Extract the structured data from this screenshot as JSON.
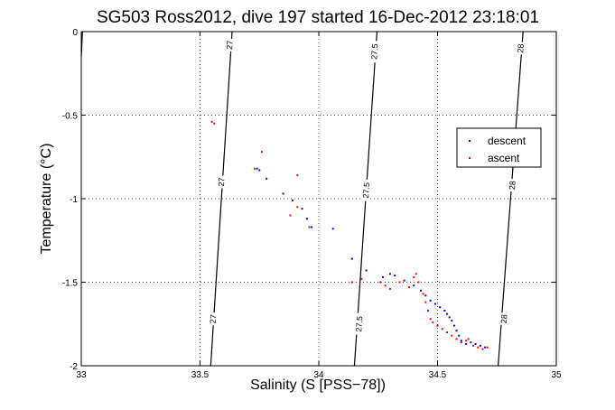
{
  "chart_data": {
    "type": "scatter",
    "title": "SG503 Ross2012, dive 197 started 16-Dec-2012 23:18:01",
    "xlabel": "Salinity (S [PSS−78])",
    "ylabel": "Temperature (°C)",
    "xlim": [
      33,
      35
    ],
    "ylim": [
      -2,
      0
    ],
    "xticks": [
      "33",
      "33.5",
      "34",
      "34.5",
      "35"
    ],
    "yticks": [
      "0",
      "-0.5",
      "-1",
      "-1.5",
      "-2"
    ],
    "grid": true,
    "legend_position": "right",
    "contours": [
      {
        "label": "27",
        "points": [
          [
            33.0,
            -0.15
          ],
          [
            33.005,
            0.0
          ]
        ],
        "labels_at": []
      },
      {
        "label": "27",
        "points": [
          [
            33.545,
            -2.0
          ],
          [
            33.635,
            0.0
          ]
        ],
        "labels_at": [
          [
            33.625,
            -0.08
          ],
          [
            33.59,
            -0.9
          ],
          [
            33.555,
            -1.72
          ]
        ]
      },
      {
        "label": "27.5",
        "points": [
          [
            34.15,
            -2.0
          ],
          [
            34.245,
            0.0
          ]
        ],
        "labels_at": [
          [
            34.235,
            -0.12
          ],
          [
            34.2,
            -0.95
          ],
          [
            34.17,
            -1.75
          ]
        ]
      },
      {
        "label": "28",
        "points": [
          [
            34.755,
            -2.0
          ],
          [
            34.86,
            0.0
          ]
        ],
        "labels_at": [
          [
            34.85,
            -0.1
          ],
          [
            34.815,
            -0.92
          ],
          [
            34.78,
            -1.72
          ]
        ]
      }
    ],
    "series": [
      {
        "name": "descent",
        "color": "#0000ff",
        "points": [
          [
            33.74,
            -0.82
          ],
          [
            33.75,
            -0.83
          ],
          [
            33.78,
            -0.88
          ],
          [
            33.85,
            -0.97
          ],
          [
            33.89,
            -1.01
          ],
          [
            33.93,
            -1.06
          ],
          [
            33.95,
            -1.12
          ],
          [
            33.97,
            -1.17
          ],
          [
            34.06,
            -1.18
          ],
          [
            34.14,
            -1.36
          ],
          [
            34.2,
            -1.43
          ],
          [
            34.27,
            -1.47
          ],
          [
            34.3,
            -1.45
          ],
          [
            34.32,
            -1.46
          ],
          [
            34.36,
            -1.49
          ],
          [
            34.4,
            -1.52
          ],
          [
            34.43,
            -1.55
          ],
          [
            34.45,
            -1.58
          ],
          [
            34.47,
            -1.61
          ],
          [
            34.49,
            -1.63
          ],
          [
            34.51,
            -1.65
          ],
          [
            34.53,
            -1.67
          ],
          [
            34.54,
            -1.69
          ],
          [
            34.55,
            -1.71
          ],
          [
            34.56,
            -1.73
          ],
          [
            34.57,
            -1.76
          ],
          [
            34.58,
            -1.79
          ],
          [
            34.59,
            -1.82
          ],
          [
            34.6,
            -1.85
          ],
          [
            34.62,
            -1.87
          ],
          [
            34.64,
            -1.86
          ],
          [
            34.66,
            -1.87
          ],
          [
            34.68,
            -1.88
          ],
          [
            34.7,
            -1.89
          ]
        ]
      },
      {
        "name": "ascent",
        "color": "#ff0000",
        "points": [
          [
            33.55,
            -0.54
          ],
          [
            33.56,
            -0.55
          ],
          [
            33.76,
            -0.72
          ],
          [
            33.73,
            -0.82
          ],
          [
            33.91,
            -0.86
          ],
          [
            33.91,
            -1.05
          ],
          [
            33.88,
            -1.1
          ],
          [
            33.96,
            -1.17
          ],
          [
            34.14,
            -1.5
          ],
          [
            34.18,
            -1.48
          ],
          [
            34.26,
            -1.5
          ],
          [
            34.28,
            -1.52
          ],
          [
            34.3,
            -1.54
          ],
          [
            34.34,
            -1.5
          ],
          [
            34.38,
            -1.53
          ],
          [
            34.4,
            -1.47
          ],
          [
            34.41,
            -1.45
          ],
          [
            34.42,
            -1.5
          ],
          [
            34.44,
            -1.57
          ],
          [
            34.45,
            -1.62
          ],
          [
            34.46,
            -1.67
          ],
          [
            34.47,
            -1.72
          ],
          [
            34.48,
            -1.74
          ],
          [
            34.5,
            -1.76
          ],
          [
            34.52,
            -1.78
          ],
          [
            34.54,
            -1.8
          ],
          [
            34.56,
            -1.82
          ],
          [
            34.58,
            -1.84
          ],
          [
            34.6,
            -1.86
          ],
          [
            34.62,
            -1.85
          ],
          [
            34.63,
            -1.84
          ],
          [
            34.65,
            -1.88
          ],
          [
            34.67,
            -1.89
          ],
          [
            34.69,
            -1.9
          ],
          [
            34.71,
            -1.89
          ]
        ]
      }
    ]
  }
}
